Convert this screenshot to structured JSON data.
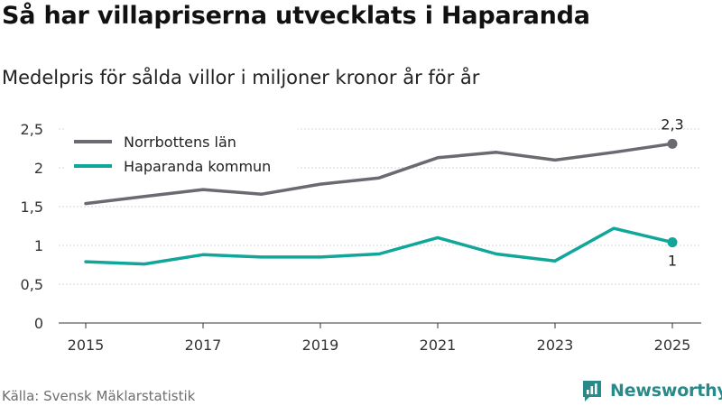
{
  "title": "Så har villapriserna utvecklats i Haparanda",
  "subtitle": "Medelpris för sålda villor i miljoner kronor år för år",
  "source": "Källa: Svensk Mäklarstatistik",
  "brand": {
    "name": "Newsworthy",
    "icon": "newsworthy-logo-icon",
    "color": "#2a8a8a"
  },
  "chart_data": {
    "type": "line",
    "title": "Så har villapriserna utvecklats i Haparanda",
    "xlabel": "",
    "ylabel": "",
    "x": [
      2015,
      2016,
      2017,
      2018,
      2019,
      2020,
      2021,
      2022,
      2023,
      2024,
      2025
    ],
    "x_tick_values": [
      2015,
      2017,
      2019,
      2021,
      2023,
      2025
    ],
    "x_tick_labels": [
      "2015",
      "2017",
      "2019",
      "2021",
      "2023",
      "2025"
    ],
    "y_tick_values": [
      0,
      0.5,
      1,
      1.5,
      2,
      2.5
    ],
    "y_tick_labels": [
      "0",
      "0,5",
      "1",
      "1,5",
      "2",
      "2,5"
    ],
    "xlim": [
      2015,
      2025
    ],
    "ylim": [
      0,
      2.5
    ],
    "grid": true,
    "legend_position": "top-left",
    "series": [
      {
        "name": "Norrbottens län",
        "color": "#6b6a70",
        "values": [
          1.54,
          1.63,
          1.72,
          1.66,
          1.79,
          1.87,
          2.13,
          2.2,
          2.1,
          2.2,
          2.31
        ],
        "end_label": "2,3",
        "end_label_position": "above"
      },
      {
        "name": "Haparanda kommun",
        "color": "#10a69a",
        "values": [
          0.79,
          0.76,
          0.88,
          0.85,
          0.85,
          0.89,
          1.1,
          0.89,
          0.8,
          1.22,
          1.04
        ],
        "end_label": "1",
        "end_label_position": "below"
      }
    ]
  }
}
